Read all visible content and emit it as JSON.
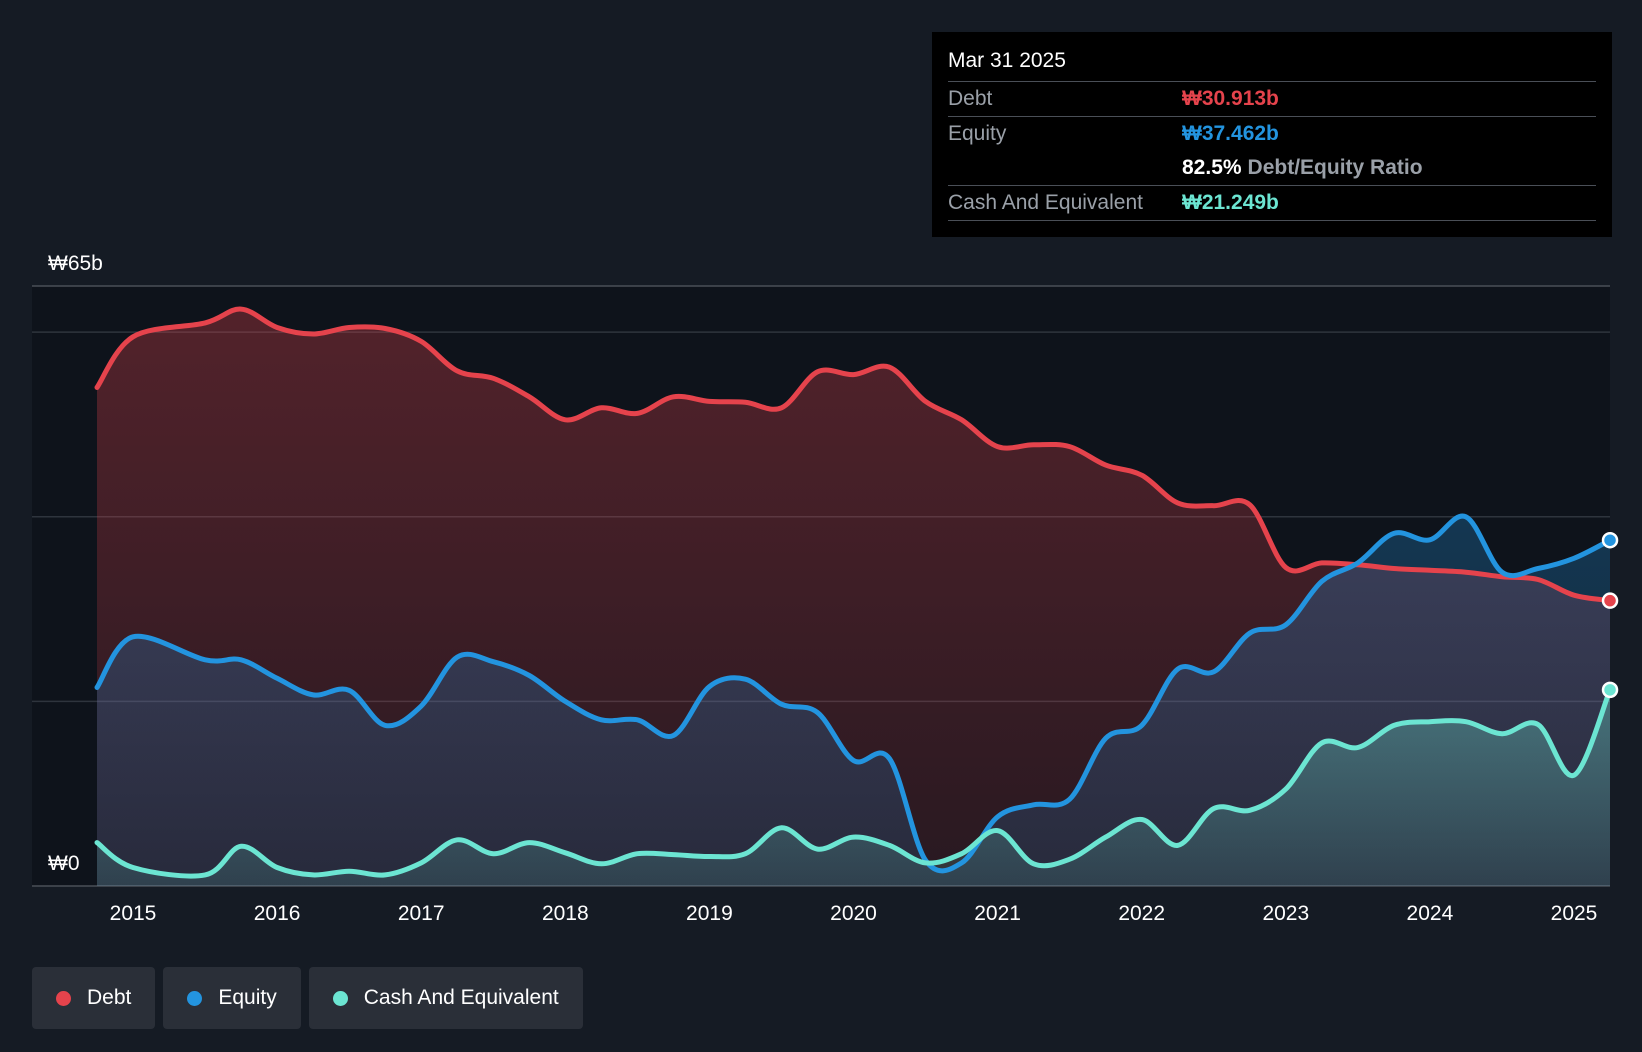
{
  "colors": {
    "background": "#151b24",
    "debt": "#e5434c",
    "equity": "#2394df",
    "cash": "#6ce5d2",
    "grid": "#3a3f47"
  },
  "tooltip": {
    "date": "Mar 31 2025",
    "debt_label": "Debt",
    "debt_value": "₩30.913b",
    "equity_label": "Equity",
    "equity_value": "₩37.462b",
    "ratio_value": "82.5%",
    "ratio_label": "Debt/Equity Ratio",
    "cash_label": "Cash And Equivalent",
    "cash_value": "₩21.249b"
  },
  "legend": [
    {
      "label": "Debt",
      "color": "#e5434c"
    },
    {
      "label": "Equity",
      "color": "#2394df"
    },
    {
      "label": "Cash And Equivalent",
      "color": "#6ce5d2"
    }
  ],
  "chart_data": {
    "type": "area",
    "title": "",
    "xlabel": "",
    "ylabel": "",
    "ylim": [
      0,
      65
    ],
    "x_ticks": [
      "2015",
      "2016",
      "2017",
      "2018",
      "2019",
      "2020",
      "2021",
      "2022",
      "2023",
      "2024",
      "2025"
    ],
    "y_tick_labels": {
      "top": "₩65b",
      "bottom": "₩0"
    },
    "y_gridlines": [
      0,
      20,
      40,
      60
    ],
    "series": [
      {
        "name": "Debt",
        "x": [
          2014.75,
          2015.0,
          2015.5,
          2015.75,
          2016.0,
          2016.25,
          2016.5,
          2016.75,
          2017.0,
          2017.25,
          2017.5,
          2017.75,
          2018.0,
          2018.25,
          2018.5,
          2018.75,
          2019.0,
          2019.25,
          2019.5,
          2019.75,
          2020.0,
          2020.25,
          2020.5,
          2020.75,
          2021.0,
          2021.25,
          2021.5,
          2021.75,
          2022.0,
          2022.25,
          2022.5,
          2022.75,
          2023.0,
          2023.25,
          2023.5,
          2023.75,
          2024.0,
          2024.25,
          2024.5,
          2024.75,
          2025.0,
          2025.25
        ],
        "values": [
          54.0,
          59.5,
          61.0,
          62.5,
          60.5,
          59.8,
          60.5,
          60.4,
          59.0,
          55.8,
          55.0,
          53.0,
          50.5,
          51.8,
          51.2,
          53.0,
          52.5,
          52.4,
          51.8,
          55.7,
          55.4,
          56.2,
          52.5,
          50.5,
          47.6,
          47.8,
          47.6,
          45.6,
          44.5,
          41.5,
          41.2,
          41.3,
          34.5,
          35.0,
          34.8,
          34.4,
          34.2,
          34.0,
          33.5,
          33.2,
          31.5,
          30.913
        ]
      },
      {
        "name": "Equity",
        "x": [
          2014.75,
          2015.0,
          2015.5,
          2015.75,
          2016.0,
          2016.25,
          2016.5,
          2016.75,
          2017.0,
          2017.25,
          2017.5,
          2017.75,
          2018.0,
          2018.25,
          2018.5,
          2018.75,
          2019.0,
          2019.25,
          2019.5,
          2019.75,
          2020.0,
          2020.25,
          2020.5,
          2020.75,
          2021.0,
          2021.25,
          2021.5,
          2021.75,
          2022.0,
          2022.25,
          2022.5,
          2022.75,
          2023.0,
          2023.25,
          2023.5,
          2023.75,
          2024.0,
          2024.25,
          2024.5,
          2024.75,
          2025.0,
          2025.25
        ],
        "values": [
          21.5,
          27.0,
          24.5,
          24.5,
          22.5,
          20.7,
          21.2,
          17.4,
          19.5,
          24.8,
          24.3,
          22.8,
          20.0,
          18.0,
          18.0,
          16.3,
          21.6,
          22.4,
          19.7,
          18.8,
          13.6,
          13.8,
          2.8,
          2.5,
          7.5,
          8.8,
          9.4,
          16.0,
          17.4,
          23.5,
          23.2,
          27.4,
          28.3,
          33.0,
          35.0,
          38.2,
          37.5,
          40.0,
          34.0,
          34.4,
          35.5,
          37.462
        ]
      },
      {
        "name": "Cash And Equivalent",
        "x": [
          2014.75,
          2015.0,
          2015.5,
          2015.75,
          2016.0,
          2016.25,
          2016.5,
          2016.75,
          2017.0,
          2017.25,
          2017.5,
          2017.75,
          2018.0,
          2018.25,
          2018.5,
          2018.75,
          2019.0,
          2019.25,
          2019.5,
          2019.75,
          2020.0,
          2020.25,
          2020.5,
          2020.75,
          2021.0,
          2021.25,
          2021.5,
          2021.75,
          2022.0,
          2022.25,
          2022.5,
          2022.75,
          2023.0,
          2023.25,
          2023.5,
          2023.75,
          2024.0,
          2024.25,
          2024.5,
          2024.75,
          2025.0,
          2025.25
        ],
        "values": [
          4.7,
          2.0,
          1.2,
          4.3,
          2.0,
          1.2,
          1.6,
          1.2,
          2.5,
          5.0,
          3.5,
          4.7,
          3.6,
          2.4,
          3.5,
          3.4,
          3.2,
          3.5,
          6.3,
          4.0,
          5.3,
          4.4,
          2.5,
          3.5,
          6.0,
          2.4,
          2.9,
          5.3,
          7.2,
          4.4,
          8.4,
          8.2,
          10.5,
          15.5,
          15.0,
          17.4,
          17.8,
          17.8,
          16.5,
          17.5,
          12.0,
          21.249
        ]
      }
    ]
  }
}
